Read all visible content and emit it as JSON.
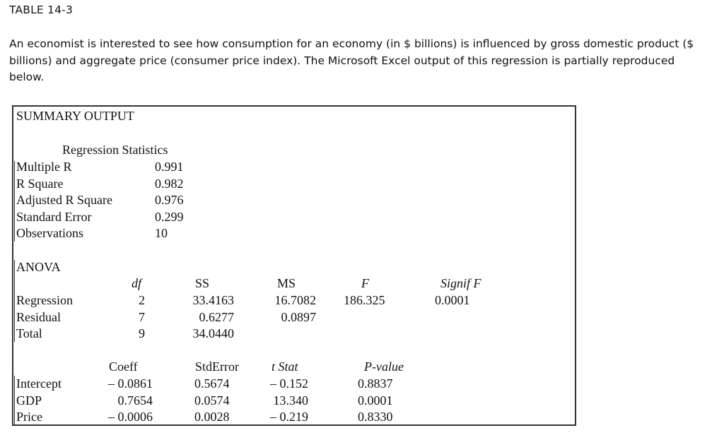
{
  "title": "TABLE 14-3",
  "description": "An economist is interested to see how consumption for an economy (in $ billions) is influenced by gross domestic product ($ billions) and aggregate price (consumer price index). The Microsoft Excel output of this regression is partially reproduced below.",
  "summary": {
    "heading": "SUMMARY OUTPUT",
    "reg_stats_heading": "Regression Statistics",
    "stats": [
      {
        "label": "Multiple R",
        "value": "0.991"
      },
      {
        "label": "R Square",
        "value": "0.982"
      },
      {
        "label": "Adjusted R Square",
        "value": "0.976"
      },
      {
        "label": "Standard Error",
        "value": "0.299"
      },
      {
        "label": "Observations",
        "value": "10"
      }
    ]
  },
  "anova": {
    "heading": "ANOVA",
    "columns": [
      "df",
      "SS",
      "MS",
      "F",
      "Signif F"
    ],
    "rows": [
      {
        "label": "Regression",
        "df": "2",
        "ss": "33.4163",
        "ms": "16.7082",
        "f": "186.325",
        "sig": "0.0001"
      },
      {
        "label": "Residual",
        "df": "7",
        "ss": "0.6277",
        "ms": "0.0897",
        "f": "",
        "sig": ""
      },
      {
        "label": "Total",
        "df": "9",
        "ss": "34.0440",
        "ms": "",
        "f": "",
        "sig": ""
      }
    ]
  },
  "coefficients": {
    "columns": [
      "Coeff",
      "StdError",
      "t Stat",
      "P-value"
    ],
    "rows": [
      {
        "label": "Intercept",
        "coeff": "– 0.0861",
        "se": "0.5674",
        "t": "– 0.152",
        "p": "0.8837"
      },
      {
        "label": "GDP",
        "coeff": "0.7654",
        "se": "0.0574",
        "t": "13.340",
        "p": "0.0001"
      },
      {
        "label": "Price",
        "coeff": "– 0.0006",
        "se": "0.0028",
        "t": "– 0.219",
        "p": "0.8330"
      }
    ]
  }
}
